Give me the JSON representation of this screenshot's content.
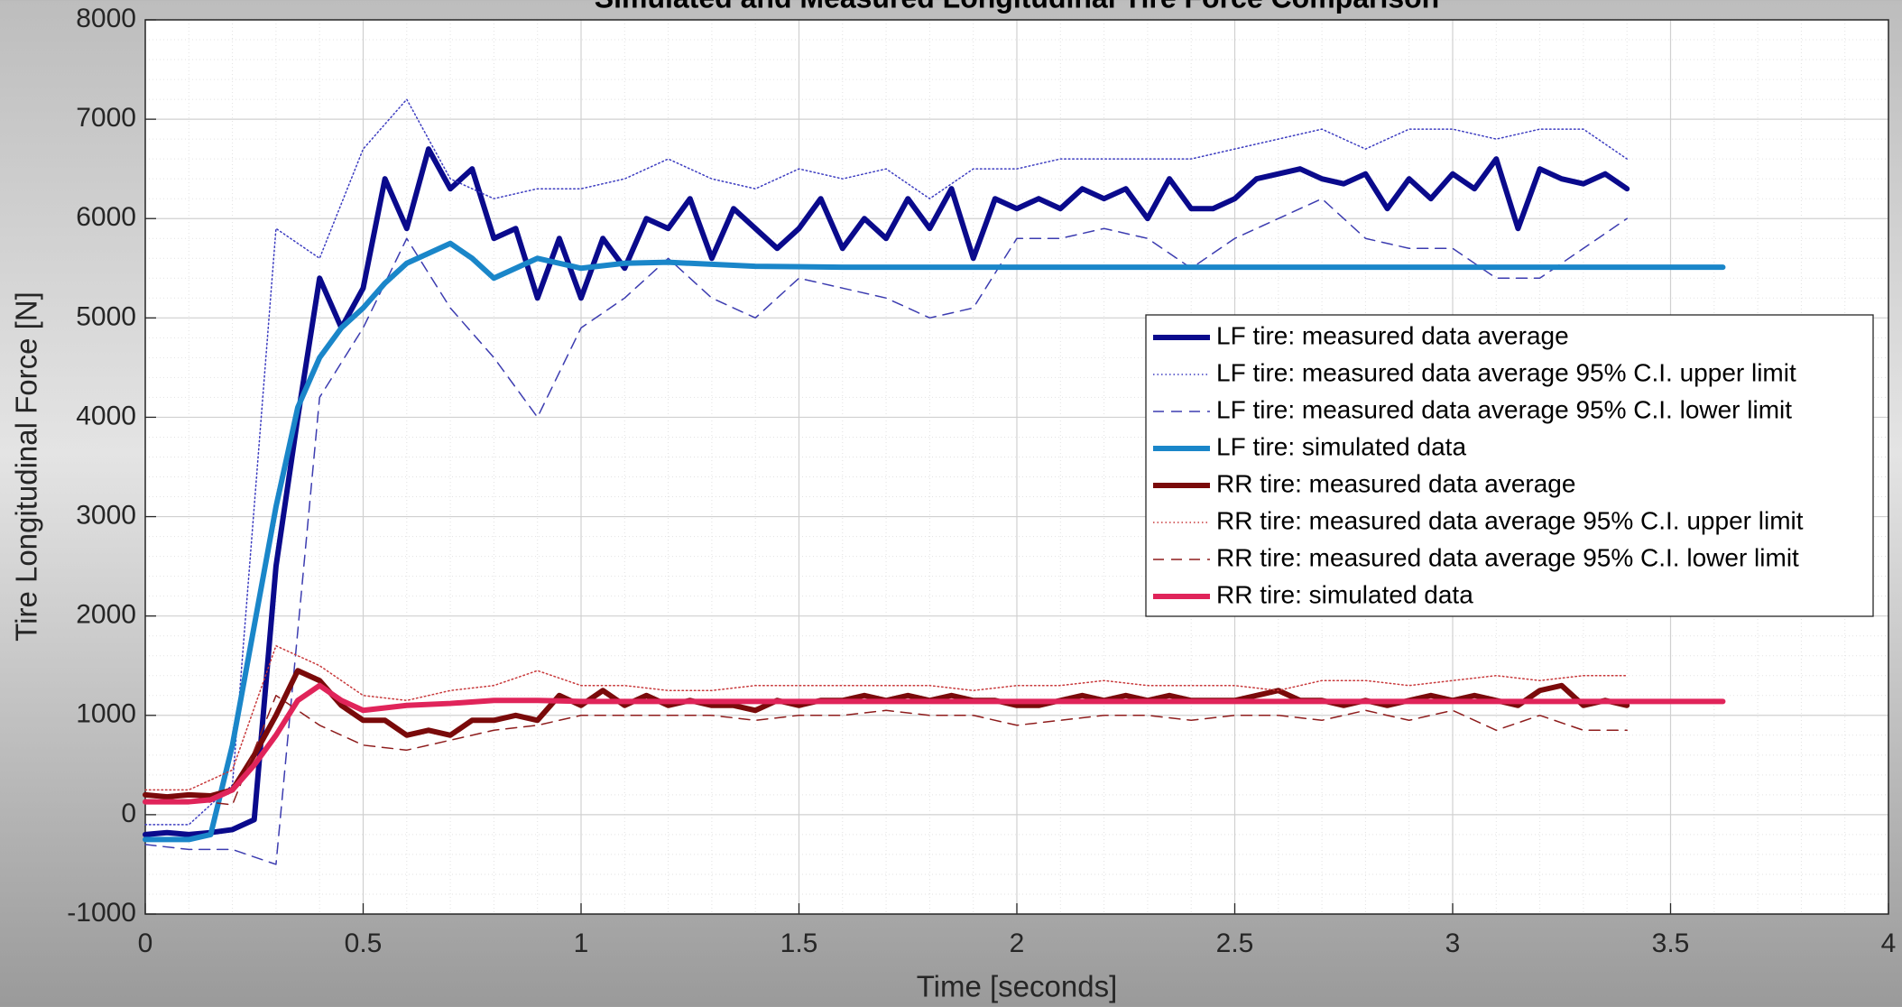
{
  "chart_data": {
    "type": "line",
    "title": "Simulated and Measured Longitudinal Tire Force Comparison",
    "x_label": "Time [seconds]",
    "y_label": "Tire Longitudinal Force [N]",
    "xlim": [
      0,
      4
    ],
    "xticks": [
      0,
      0.5,
      1,
      1.5,
      2,
      2.5,
      3,
      3.5,
      4
    ],
    "ylim": [
      -1000,
      8000
    ],
    "yticks": [
      -1000,
      0,
      1000,
      2000,
      3000,
      4000,
      5000,
      6000,
      7000,
      8000
    ],
    "grid": true,
    "legend": "right",
    "series": [
      {
        "name": "LF tire: measured data average",
        "color": "#0a0a8c",
        "width": 6,
        "dash": "solid",
        "x": [
          0,
          0.05,
          0.1,
          0.15,
          0.2,
          0.25,
          0.3,
          0.35,
          0.4,
          0.45,
          0.5,
          0.55,
          0.6,
          0.65,
          0.7,
          0.75,
          0.8,
          0.85,
          0.9,
          0.95,
          1,
          1.05,
          1.1,
          1.15,
          1.2,
          1.25,
          1.3,
          1.35,
          1.4,
          1.45,
          1.5,
          1.55,
          1.6,
          1.65,
          1.7,
          1.75,
          1.8,
          1.85,
          1.9,
          1.95,
          2,
          2.05,
          2.1,
          2.15,
          2.2,
          2.25,
          2.3,
          2.35,
          2.4,
          2.45,
          2.5,
          2.55,
          2.6,
          2.65,
          2.7,
          2.75,
          2.8,
          2.85,
          2.9,
          2.95,
          3,
          3.05,
          3.1,
          3.15,
          3.2,
          3.25,
          3.3,
          3.35,
          3.4
        ],
        "values": [
          -200,
          -180,
          -200,
          -180,
          -150,
          -50,
          2500,
          4000,
          5400,
          4900,
          5300,
          6400,
          5900,
          6700,
          6300,
          6500,
          5800,
          5900,
          5200,
          5800,
          5200,
          5800,
          5500,
          6000,
          5900,
          6200,
          5600,
          6100,
          5900,
          5700,
          5900,
          6200,
          5700,
          6000,
          5800,
          6200,
          5900,
          6300,
          5600,
          6200,
          6100,
          6200,
          6100,
          6300,
          6200,
          6300,
          6000,
          6400,
          6100,
          6100,
          6200,
          6400,
          6450,
          6500,
          6400,
          6350,
          6450,
          6100,
          6400,
          6200,
          6450,
          6300,
          6600,
          5900,
          6500,
          6400,
          6350,
          6450,
          6300
        ]
      },
      {
        "name": "LF tire: measured data average 95% C.I. upper limit",
        "color": "#3c3cc0",
        "width": 1.5,
        "dash": "dotted",
        "x": [
          0,
          0.1,
          0.2,
          0.3,
          0.4,
          0.5,
          0.6,
          0.7,
          0.8,
          0.9,
          1,
          1.1,
          1.2,
          1.3,
          1.4,
          1.5,
          1.6,
          1.7,
          1.8,
          1.9,
          2,
          2.1,
          2.2,
          2.3,
          2.4,
          2.5,
          2.6,
          2.7,
          2.8,
          2.9,
          3,
          3.1,
          3.2,
          3.3,
          3.4
        ],
        "values": [
          -100,
          -100,
          300,
          5900,
          5600,
          6700,
          7200,
          6400,
          6200,
          6300,
          6300,
          6400,
          6600,
          6400,
          6300,
          6500,
          6400,
          6500,
          6200,
          6500,
          6500,
          6600,
          6600,
          6600,
          6600,
          6700,
          6800,
          6900,
          6700,
          6900,
          6900,
          6800,
          6900,
          6900,
          6600
        ]
      },
      {
        "name": "LF tire: measured data average 95% C.I. lower limit",
        "color": "#3c3cb0",
        "width": 1.5,
        "dash": "dashed",
        "x": [
          0,
          0.1,
          0.2,
          0.3,
          0.4,
          0.5,
          0.6,
          0.7,
          0.8,
          0.9,
          1,
          1.1,
          1.2,
          1.3,
          1.4,
          1.5,
          1.6,
          1.7,
          1.8,
          1.9,
          2,
          2.1,
          2.2,
          2.3,
          2.4,
          2.5,
          2.6,
          2.7,
          2.8,
          2.9,
          3,
          3.1,
          3.2,
          3.3,
          3.4
        ],
        "values": [
          -300,
          -350,
          -350,
          -500,
          4200,
          4900,
          5800,
          5100,
          4600,
          4000,
          4900,
          5200,
          5600,
          5200,
          5000,
          5400,
          5300,
          5200,
          5000,
          5100,
          5800,
          5800,
          5900,
          5800,
          5500,
          5800,
          6000,
          6200,
          5800,
          5700,
          5700,
          5400,
          5400,
          5700,
          6000
        ]
      },
      {
        "name": "LF tire: simulated data",
        "color": "#1a86c9",
        "width": 6,
        "dash": "solid",
        "x": [
          0,
          0.05,
          0.1,
          0.15,
          0.2,
          0.25,
          0.3,
          0.35,
          0.4,
          0.45,
          0.5,
          0.55,
          0.6,
          0.65,
          0.7,
          0.75,
          0.8,
          0.9,
          1,
          1.1,
          1.2,
          1.4,
          1.6,
          2,
          2.5,
          3,
          3.62
        ],
        "values": [
          -250,
          -250,
          -250,
          -200,
          700,
          1900,
          3100,
          4100,
          4600,
          4900,
          5100,
          5350,
          5550,
          5650,
          5750,
          5600,
          5400,
          5600,
          5500,
          5550,
          5560,
          5520,
          5510,
          5510,
          5510,
          5510,
          5510
        ]
      },
      {
        "name": "RR tire: measured data average",
        "color": "#7a0a0a",
        "width": 6,
        "dash": "solid",
        "x": [
          0,
          0.05,
          0.1,
          0.15,
          0.2,
          0.25,
          0.3,
          0.35,
          0.4,
          0.45,
          0.5,
          0.55,
          0.6,
          0.65,
          0.7,
          0.75,
          0.8,
          0.85,
          0.9,
          0.95,
          1,
          1.05,
          1.1,
          1.15,
          1.2,
          1.25,
          1.3,
          1.35,
          1.4,
          1.45,
          1.5,
          1.55,
          1.6,
          1.65,
          1.7,
          1.75,
          1.8,
          1.85,
          1.9,
          1.95,
          2,
          2.05,
          2.1,
          2.15,
          2.2,
          2.25,
          2.3,
          2.35,
          2.4,
          2.45,
          2.5,
          2.55,
          2.6,
          2.65,
          2.7,
          2.75,
          2.8,
          2.85,
          2.9,
          2.95,
          3,
          3.05,
          3.1,
          3.15,
          3.2,
          3.25,
          3.3,
          3.35,
          3.4
        ],
        "values": [
          200,
          180,
          200,
          190,
          250,
          600,
          1000,
          1450,
          1350,
          1100,
          950,
          950,
          800,
          850,
          800,
          950,
          950,
          1000,
          950,
          1200,
          1100,
          1250,
          1100,
          1200,
          1100,
          1150,
          1100,
          1100,
          1050,
          1150,
          1100,
          1150,
          1150,
          1200,
          1150,
          1200,
          1150,
          1200,
          1150,
          1150,
          1100,
          1100,
          1150,
          1200,
          1150,
          1200,
          1150,
          1200,
          1150,
          1150,
          1150,
          1200,
          1250,
          1150,
          1150,
          1100,
          1150,
          1100,
          1150,
          1200,
          1150,
          1200,
          1150,
          1100,
          1250,
          1300,
          1100,
          1150,
          1100
        ]
      },
      {
        "name": "RR tire: measured data average 95% C.I. upper limit",
        "color": "#c8383a",
        "width": 1.5,
        "dash": "dotted",
        "x": [
          0,
          0.1,
          0.2,
          0.3,
          0.4,
          0.5,
          0.6,
          0.7,
          0.8,
          0.9,
          1,
          1.1,
          1.2,
          1.3,
          1.4,
          1.5,
          1.6,
          1.7,
          1.8,
          1.9,
          2,
          2.1,
          2.2,
          2.3,
          2.4,
          2.5,
          2.6,
          2.7,
          2.8,
          2.9,
          3,
          3.1,
          3.2,
          3.3,
          3.4
        ],
        "values": [
          250,
          250,
          450,
          1700,
          1500,
          1200,
          1150,
          1250,
          1300,
          1450,
          1300,
          1300,
          1250,
          1250,
          1300,
          1300,
          1300,
          1300,
          1300,
          1250,
          1300,
          1300,
          1350,
          1300,
          1300,
          1300,
          1250,
          1350,
          1350,
          1300,
          1350,
          1400,
          1350,
          1400,
          1400
        ]
      },
      {
        "name": "RR tire: measured data average 95% C.I. lower limit",
        "color": "#8e1c1c",
        "width": 1.5,
        "dash": "dashed",
        "x": [
          0,
          0.1,
          0.2,
          0.3,
          0.4,
          0.5,
          0.6,
          0.7,
          0.8,
          0.9,
          1,
          1.1,
          1.2,
          1.3,
          1.4,
          1.5,
          1.6,
          1.7,
          1.8,
          1.9,
          2,
          2.1,
          2.2,
          2.3,
          2.4,
          2.5,
          2.6,
          2.7,
          2.8,
          2.9,
          3,
          3.1,
          3.2,
          3.3,
          3.4
        ],
        "values": [
          150,
          150,
          100,
          1200,
          900,
          700,
          650,
          750,
          850,
          900,
          1000,
          1000,
          1000,
          1000,
          950,
          1000,
          1000,
          1050,
          1000,
          1000,
          900,
          950,
          1000,
          1000,
          950,
          1000,
          1000,
          950,
          1050,
          950,
          1050,
          850,
          1000,
          850,
          850
        ]
      },
      {
        "name": "RR tire: simulated data",
        "color": "#e0245a",
        "width": 6,
        "dash": "solid",
        "x": [
          0,
          0.1,
          0.15,
          0.2,
          0.25,
          0.3,
          0.35,
          0.4,
          0.45,
          0.5,
          0.6,
          0.7,
          0.8,
          0.9,
          1,
          1.2,
          1.5,
          2,
          3,
          3.62
        ],
        "values": [
          130,
          130,
          150,
          250,
          500,
          800,
          1150,
          1300,
          1150,
          1050,
          1100,
          1120,
          1150,
          1150,
          1140,
          1140,
          1140,
          1140,
          1140,
          1140
        ]
      }
    ]
  }
}
